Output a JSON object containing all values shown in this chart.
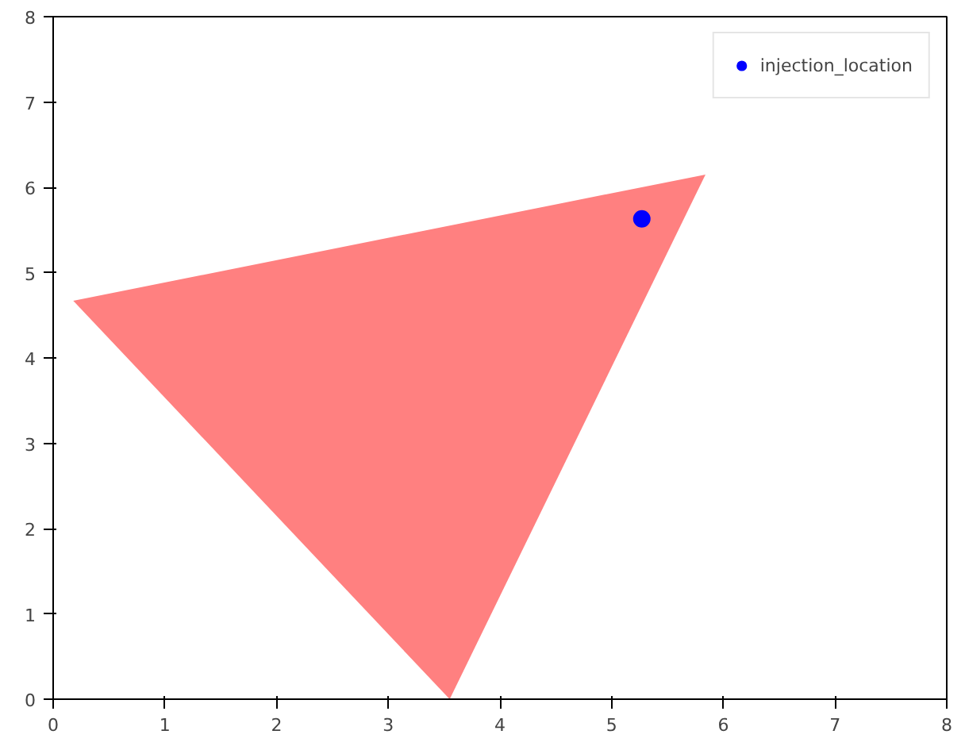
{
  "chart_data": {
    "type": "scatter",
    "xlim": [
      0,
      8
    ],
    "ylim": [
      0,
      8
    ],
    "xticks": [
      0,
      1,
      2,
      3,
      4,
      5,
      6,
      7,
      8
    ],
    "yticks": [
      0,
      1,
      2,
      3,
      4,
      5,
      6,
      7,
      8
    ],
    "grid": false,
    "legend": "top right",
    "series": [
      {
        "type": "area",
        "color": "#ff8080",
        "x": [
          0.18,
          5.84,
          3.55,
          0.18
        ],
        "values": [
          4.67,
          6.15,
          0,
          4.67
        ]
      },
      {
        "name": "injection_location",
        "color": "#0000ff",
        "marker": "circle",
        "x": [
          5.27
        ],
        "values": [
          5.63
        ]
      }
    ]
  }
}
